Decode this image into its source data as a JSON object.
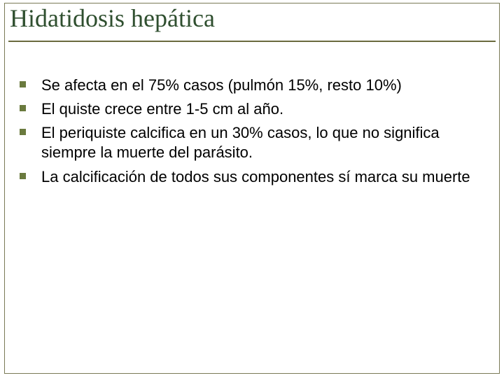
{
  "slide": {
    "title": "Hidatidosis hepática",
    "title_color": "#2f4f2f",
    "title_fontsize": 36,
    "title_fontfamily": "Times New Roman",
    "frame_border_color": "#7a7a56",
    "rule_color": "#6a6a3e",
    "background_color": "#ffffff",
    "bullets": {
      "marker_color": "#6a7a3e",
      "marker_size": 9,
      "text_color": "#000000",
      "text_fontsize": 22,
      "items": [
        "Se afecta en el 75% casos (pulmón 15%, resto 10%)",
        "El quiste crece entre 1-5 cm al año.",
        "El periquiste calcifica en un 30% casos, lo que no significa siempre la muerte del parásito.",
        "La calcificación de todos sus componentes sí marca su muerte"
      ]
    }
  }
}
